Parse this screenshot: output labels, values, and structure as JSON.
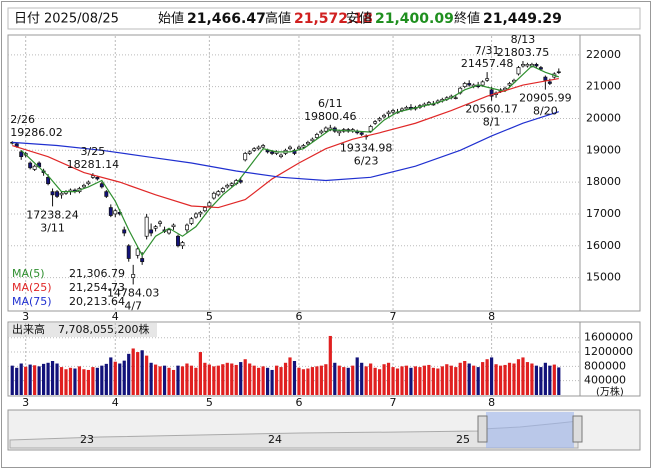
{
  "header": {
    "date_label": "日付",
    "date": "2025/08/25",
    "items": [
      {
        "label": "始値",
        "value": "21,466.47"
      },
      {
        "label": "高値",
        "value": "21,572.18"
      },
      {
        "label": "安値",
        "value": "21,400.09"
      },
      {
        "label": "終値",
        "value": "21,449.29"
      }
    ]
  },
  "chart_data": {
    "type": "candlestick",
    "categories": [
      null,
      null,
      null,
      "3",
      null,
      null,
      null,
      null,
      null,
      null,
      null,
      null,
      null,
      null,
      null,
      null,
      null,
      null,
      null,
      null,
      null,
      null,
      null,
      "4",
      null,
      null,
      null,
      null,
      null,
      null,
      null,
      null,
      null,
      null,
      null,
      null,
      null,
      null,
      null,
      null,
      null,
      null,
      null,
      null,
      "5",
      null,
      null,
      null,
      null,
      null,
      null,
      null,
      null,
      null,
      null,
      null,
      null,
      null,
      null,
      null,
      null,
      null,
      null,
      null,
      "6",
      null,
      null,
      null,
      null,
      null,
      null,
      null,
      null,
      null,
      null,
      null,
      null,
      null,
      null,
      null,
      null,
      null,
      null,
      null,
      null,
      "7",
      null,
      null,
      null,
      null,
      null,
      null,
      null,
      null,
      null,
      null,
      null,
      null,
      null,
      null,
      null,
      null,
      null,
      null,
      null,
      null,
      null,
      "8",
      null,
      null,
      null,
      null,
      null,
      null,
      null,
      null,
      null,
      null,
      null,
      null,
      null,
      null,
      null
    ],
    "open": [
      19250,
      19200,
      18950,
      18850,
      18600,
      18400,
      18600,
      18350,
      18150,
      17700,
      17700,
      17600,
      17650,
      17700,
      17750,
      17700,
      17850,
      17950,
      18150,
      18150,
      17950,
      17700,
      17200,
      17000,
      17050,
      16500,
      16000,
      15000,
      15700,
      15600,
      16300,
      16500,
      16550,
      16700,
      16500,
      16400,
      16600,
      16300,
      16000,
      16500,
      16700,
      16900,
      17000,
      17100,
      17250,
      17500,
      17600,
      17700,
      17850,
      17900,
      17950,
      18050,
      18700,
      18900,
      19000,
      19050,
      19100,
      19000,
      18950,
      18900,
      18800,
      18900,
      19050,
      19000,
      19050,
      19100,
      19200,
      19300,
      19400,
      19550,
      19600,
      19650,
      19700,
      19550,
      19600,
      19650,
      19600,
      19600,
      19550,
      19450,
      19600,
      19850,
      19950,
      20050,
      20150,
      20200,
      20200,
      20250,
      20300,
      20350,
      20300,
      20350,
      20400,
      20450,
      20450,
      20500,
      20550,
      20600,
      20650,
      20650,
      20800,
      21000,
      21100,
      21000,
      21050,
      21050,
      21200,
      20900,
      20750,
      20850,
      20900,
      21050,
      21150,
      21400,
      21650,
      21650,
      21650,
      21700,
      21600,
      21300,
      21150,
      21300,
      21466.47
    ],
    "high": [
      19286.02,
      19240,
      19000,
      18950,
      18650,
      18550,
      18650,
      18420,
      18250,
      17800,
      17750,
      17700,
      17750,
      17800,
      17800,
      17850,
      17950,
      18050,
      18281.14,
      18200,
      18000,
      17750,
      17300,
      17150,
      17150,
      16600,
      16050,
      15400,
      15950,
      15800,
      17000,
      16700,
      16650,
      16800,
      16600,
      16550,
      16700,
      16350,
      16150,
      16700,
      16900,
      17050,
      17100,
      17250,
      17400,
      17700,
      17750,
      17850,
      17950,
      18000,
      18100,
      18150,
      18950,
      19000,
      19100,
      19150,
      19200,
      19050,
      19000,
      19000,
      18900,
      19050,
      19150,
      19050,
      19150,
      19200,
      19300,
      19400,
      19550,
      19650,
      19750,
      19800.46,
      19750,
      19650,
      19700,
      19700,
      19700,
      19650,
      19600,
      19500,
      19800,
      19950,
      20050,
      20150,
      20250,
      20300,
      20300,
      20350,
      20400,
      20450,
      20400,
      20450,
      20500,
      20550,
      20550,
      20600,
      20650,
      20700,
      20750,
      20750,
      21000,
      21150,
      21200,
      21100,
      21150,
      21200,
      21457.48,
      21000,
      20850,
      20950,
      21000,
      21150,
      21250,
      21650,
      21803.75,
      21750,
      21750,
      21750,
      21650,
      21350,
      21250,
      21450,
      21572.18
    ],
    "low": [
      19180,
      19080,
      18700,
      18780,
      18400,
      18350,
      18450,
      18200,
      17900,
      17238.24,
      17500,
      17480,
      17600,
      17600,
      17650,
      17650,
      17800,
      17900,
      18100,
      18050,
      17800,
      17500,
      16900,
      16900,
      16950,
      16300,
      15500,
      14784.03,
      15600,
      15400,
      16200,
      16300,
      16450,
      16600,
      16400,
      16350,
      16500,
      15950,
      15900,
      16400,
      16650,
      16850,
      16900,
      17050,
      17200,
      17450,
      17550,
      17650,
      17800,
      17850,
      17900,
      17950,
      18650,
      18850,
      18950,
      19000,
      19050,
      18900,
      18850,
      18850,
      18750,
      18850,
      19000,
      18850,
      19000,
      19050,
      19150,
      19250,
      19350,
      19500,
      19550,
      19600,
      19550,
      19450,
      19550,
      19550,
      19550,
      19500,
      19450,
      19334.98,
      19550,
      19800,
      19900,
      20000,
      20050,
      20100,
      20150,
      20200,
      20250,
      20250,
      20250,
      20300,
      20350,
      20400,
      20400,
      20450,
      20500,
      20550,
      20600,
      20600,
      20750,
      20950,
      21000,
      20950,
      20950,
      21000,
      21150,
      20560.17,
      20650,
      20800,
      20850,
      21000,
      21100,
      21350,
      21600,
      21600,
      21600,
      21600,
      21500,
      20905.99,
      21050,
      21250,
      21400.09
    ],
    "close": [
      19230,
      19120,
      18800,
      18900,
      18450,
      18500,
      18480,
      18300,
      17950,
      17600,
      17550,
      17650,
      17700,
      17750,
      17700,
      17800,
      17900,
      18000,
      18200,
      18100,
      17850,
      17550,
      16950,
      17100,
      17000,
      16400,
      15600,
      15100,
      15900,
      15500,
      16900,
      16400,
      16600,
      16750,
      16450,
      16500,
      16650,
      16000,
      16100,
      16650,
      16850,
      17000,
      17050,
      17200,
      17350,
      17650,
      17700,
      17800,
      17900,
      17950,
      18050,
      18000,
      18900,
      18950,
      19050,
      19100,
      19150,
      18950,
      18900,
      18950,
      18850,
      19000,
      19100,
      18900,
      19100,
      19150,
      19250,
      19350,
      19500,
      19600,
      19700,
      19700,
      19600,
      19600,
      19650,
      19600,
      19650,
      19550,
      19500,
      19450,
      19750,
      19900,
      20000,
      20100,
      20200,
      20250,
      20200,
      20300,
      20350,
      20300,
      20350,
      20400,
      20450,
      20500,
      20450,
      20550,
      20600,
      20650,
      20700,
      20650,
      20950,
      21100,
      21050,
      21050,
      21000,
      21150,
      21250,
      20700,
      20800,
      20900,
      20950,
      21100,
      21200,
      21600,
      21700,
      21700,
      21700,
      21650,
      21550,
      21200,
      21100,
      21400,
      21449.29
    ],
    "up_color": "#ffffff",
    "down_color": "#12127a",
    "ylim": [
      13950,
      22560
    ],
    "yticks": [
      15000,
      16000,
      17000,
      18000,
      19000,
      20000,
      21000,
      22000
    ],
    "grid": true,
    "ma": [
      {
        "name": "MA(5)",
        "color": "#2f8f2f",
        "value_label": "21,306.79",
        "x": [
          2,
          5,
          8,
          11,
          14,
          17,
          20,
          23,
          26,
          29,
          32,
          35,
          38,
          41,
          44,
          47,
          50,
          53,
          56,
          59,
          62,
          65,
          68,
          71,
          74,
          77,
          80,
          83,
          86,
          89,
          92,
          95,
          98,
          101,
          104,
          107,
          110,
          113,
          116,
          119,
          122
        ],
        "values": [
          19000,
          18600,
          18200,
          17700,
          17700,
          17850,
          18050,
          17400,
          16500,
          15700,
          16300,
          16550,
          16300,
          16600,
          17150,
          17600,
          17950,
          18500,
          19050,
          18950,
          18950,
          19050,
          19350,
          19650,
          19620,
          19600,
          19570,
          19950,
          20200,
          20300,
          20400,
          20500,
          20650,
          20900,
          21050,
          20950,
          20850,
          21250,
          21650,
          21450,
          21306.79
        ]
      },
      {
        "name": "MA(25)",
        "color": "#e02828",
        "value_label": "21,254.73",
        "x": [
          0,
          8,
          16,
          24,
          32,
          40,
          46,
          52,
          58,
          64,
          70,
          76,
          82,
          90,
          98,
          106,
          114,
          122
        ],
        "values": [
          19150,
          18800,
          18300,
          18000,
          17600,
          17250,
          17200,
          17450,
          18100,
          18600,
          19050,
          19350,
          19550,
          19850,
          20250,
          20700,
          21050,
          21254.73
        ]
      },
      {
        "name": "MA(75)",
        "color": "#2030d0",
        "value_label": "20,213.64",
        "x": [
          0,
          10,
          20,
          30,
          40,
          50,
          60,
          70,
          80,
          90,
          100,
          107,
          114,
          122
        ],
        "values": [
          19250,
          19150,
          19000,
          18800,
          18600,
          18350,
          18150,
          18050,
          18150,
          18500,
          19000,
          19450,
          19850,
          20213.64
        ]
      }
    ],
    "annotations": [
      {
        "date": "2/26",
        "value": 19286.02
      },
      {
        "date": "3/11",
        "value": 17238.24
      },
      {
        "date": "3/25",
        "value": 18281.14
      },
      {
        "date": "4/7",
        "value": 14784.03
      },
      {
        "date": "6/11",
        "value": 19800.46
      },
      {
        "date": "6/23",
        "value": 19334.98
      },
      {
        "date": "7/31",
        "value": 21457.48
      },
      {
        "date": "8/1",
        "value": 20560.17
      },
      {
        "date": "8/13",
        "value": 21803.75
      },
      {
        "date": "8/20",
        "value": 20905.99
      }
    ],
    "volume": {
      "title": "出来高",
      "total": "7,708,055,200株",
      "unit": "(万株)",
      "up_color": "#e02020",
      "down_color": "#12127a",
      "ylim": [
        0,
        1900000
      ],
      "yticks": [
        400000,
        800000,
        1200000,
        1600000
      ],
      "values": [
        820000,
        760000,
        880000,
        790000,
        850000,
        830000,
        800000,
        870000,
        900000,
        950000,
        880000,
        780000,
        720000,
        760000,
        740000,
        800000,
        720000,
        700000,
        780000,
        760000,
        820000,
        870000,
        1050000,
        930000,
        880000,
        960000,
        1150000,
        1300000,
        1200000,
        1250000,
        1100000,
        900000,
        850000,
        800000,
        820000,
        760000,
        700000,
        820000,
        800000,
        880000,
        820000,
        760000,
        1200000,
        900000,
        850000,
        800000,
        820000,
        860000,
        900000,
        880000,
        840000,
        920000,
        1000000,
        880000,
        820000,
        760000,
        800000,
        760000,
        700000,
        820000,
        780000,
        900000,
        1050000,
        950000,
        760000,
        720000,
        740000,
        780000,
        800000,
        820000,
        860000,
        1650000,
        900000,
        820000,
        780000,
        760000,
        820000,
        1050000,
        900000,
        800000,
        880000,
        760000,
        720000,
        860000,
        900000,
        780000,
        740000,
        800000,
        820000,
        760000,
        800000,
        780000,
        820000,
        840000,
        760000,
        740000,
        800000,
        860000,
        820000,
        780000,
        900000,
        950000,
        880000,
        820000,
        780000,
        920000,
        1000000,
        1050000,
        860000,
        820000,
        840000,
        900000,
        880000,
        1000000,
        1050000,
        920000,
        880000,
        820000,
        780000,
        900000,
        820000,
        850000,
        770806
      ]
    }
  },
  "navigator": {
    "labels": [
      "23",
      "24",
      "25"
    ]
  }
}
